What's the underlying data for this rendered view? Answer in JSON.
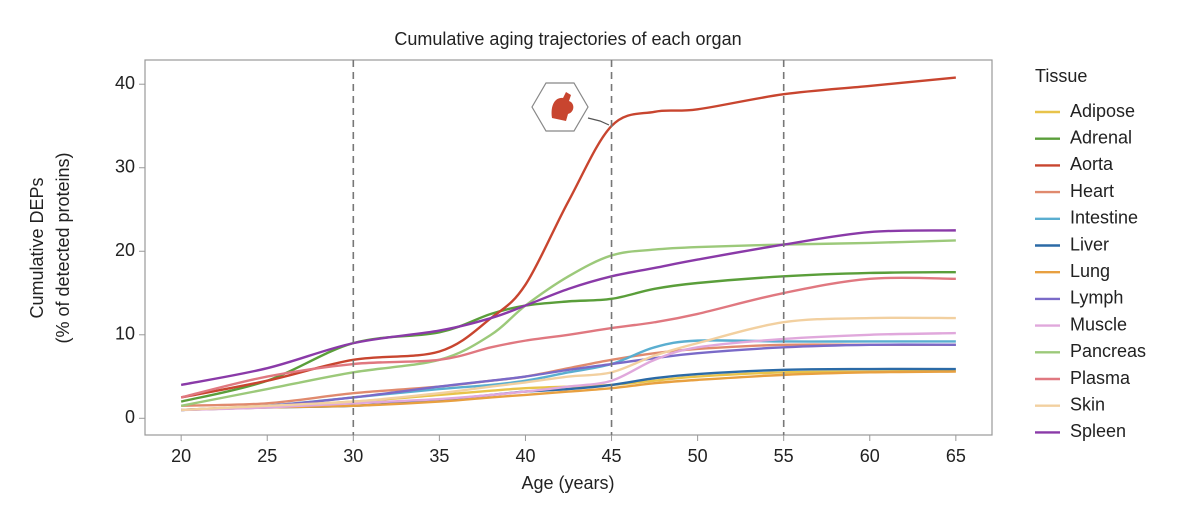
{
  "chart_data": {
    "type": "line",
    "title": "Cumulative aging trajectories of each organ",
    "xlabel": "Age (years)",
    "ylabel": [
      "Cumulative DEPs",
      "(% of detected proteins)"
    ],
    "legend_title": "Tissue",
    "legend": "right",
    "x": [
      20,
      25,
      30,
      35,
      38,
      40,
      42.5,
      45,
      47.5,
      50,
      55,
      60,
      65
    ],
    "xlim": [
      17.9,
      67.1
    ],
    "xticks": [
      20,
      25,
      30,
      35,
      40,
      45,
      50,
      55,
      60,
      65
    ],
    "ylim": [
      -2,
      42.9
    ],
    "yticks": [
      0,
      10,
      20,
      30,
      40
    ],
    "vlines": [
      30,
      45,
      55
    ],
    "grid": false,
    "series": [
      {
        "name": "Adipose",
        "color": "#e8c34a",
        "values": [
          1,
          1.5,
          2,
          2.8,
          3.3,
          3.6,
          3.8,
          4,
          4.5,
          5,
          5.5,
          5.6,
          5.7
        ]
      },
      {
        "name": "Adrenal",
        "color": "#5a9e3a",
        "values": [
          2,
          4.5,
          9,
          10.3,
          12.5,
          13.5,
          14,
          14.3,
          15.5,
          16.2,
          17,
          17.4,
          17.5
        ]
      },
      {
        "name": "Aorta",
        "color": "#c8452f",
        "values": [
          2.5,
          4.5,
          7,
          8,
          12,
          16,
          26,
          35,
          36.7,
          37,
          38.8,
          39.8,
          40.8
        ]
      },
      {
        "name": "Heart",
        "color": "#e08a6e",
        "values": [
          1.5,
          1.8,
          3,
          3.8,
          4.5,
          5,
          6,
          7,
          7.8,
          8.3,
          8.8,
          8.8,
          8.8
        ]
      },
      {
        "name": "Intestine",
        "color": "#5aaed0",
        "values": [
          1,
          1.5,
          2.5,
          3.5,
          4,
          4.5,
          5.5,
          6.5,
          8.5,
          9.3,
          9.2,
          9.2,
          9.2
        ]
      },
      {
        "name": "Liver",
        "color": "#2b6aa6",
        "values": [
          1,
          1.3,
          1.5,
          2.2,
          2.8,
          3.2,
          3.5,
          4,
          4.8,
          5.3,
          5.8,
          5.9,
          5.9
        ]
      },
      {
        "name": "Lung",
        "color": "#e8a040",
        "values": [
          1,
          1.3,
          1.5,
          2,
          2.5,
          2.8,
          3.2,
          3.6,
          4.2,
          4.6,
          5.2,
          5.5,
          5.6
        ]
      },
      {
        "name": "Lymph",
        "color": "#7a6ac8",
        "values": [
          1,
          1.5,
          2.5,
          3.8,
          4.5,
          5,
          5.8,
          6.5,
          7.2,
          7.8,
          8.5,
          8.8,
          8.8
        ]
      },
      {
        "name": "Muscle",
        "color": "#e0a8dc",
        "values": [
          1,
          1.3,
          1.8,
          2.3,
          2.8,
          3.2,
          3.8,
          4.5,
          7,
          8.5,
          9.5,
          10,
          10.2
        ]
      },
      {
        "name": "Pancreas",
        "color": "#9cc97a",
        "values": [
          1.5,
          3.5,
          5.5,
          7,
          10,
          13.5,
          17,
          19.5,
          20.2,
          20.5,
          20.8,
          21,
          21.3
        ]
      },
      {
        "name": "Plasma",
        "color": "#e07880",
        "values": [
          2.5,
          5,
          6.5,
          7,
          8.5,
          9.3,
          10,
          10.8,
          11.5,
          12.5,
          15,
          16.7,
          16.7
        ]
      },
      {
        "name": "Skin",
        "color": "#f2d0a0",
        "values": [
          1,
          1.5,
          2,
          3,
          3.8,
          4.3,
          5,
          5.5,
          7.5,
          9,
          11.5,
          12,
          12
        ]
      },
      {
        "name": "Spleen",
        "color": "#8a3aa8",
        "values": [
          4,
          6,
          9,
          10.5,
          12,
          13.5,
          15.5,
          17,
          18,
          19,
          20.8,
          22.3,
          22.5
        ]
      }
    ]
  }
}
